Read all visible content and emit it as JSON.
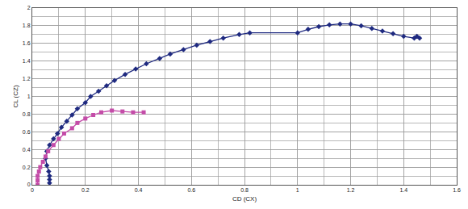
{
  "chart_data": {
    "type": "scatter",
    "x_label": "CD (CX)",
    "y_label": "CL (CZ)",
    "xlim": [
      0,
      1.6
    ],
    "xticks": [
      0,
      0.2,
      0.4,
      0.6,
      0.8,
      1,
      1.2,
      1.4,
      1.6
    ],
    "ylim": [
      0,
      2
    ],
    "yticks": [
      0,
      0.2,
      0.4,
      0.6,
      0.8,
      1,
      1.2,
      1.4,
      1.6,
      1.8,
      2
    ],
    "grid": true,
    "series": [
      {
        "color": "#1f2a80",
        "marker": "diamond",
        "line_style": "solid",
        "x": [
          0.065,
          0.065,
          0.065,
          0.062,
          0.055,
          0.05,
          0.055,
          0.065,
          0.08,
          0.095,
          0.11,
          0.13,
          0.15,
          0.17,
          0.2,
          0.22,
          0.25,
          0.28,
          0.31,
          0.35,
          0.39,
          0.43,
          0.48,
          0.52,
          0.57,
          0.62,
          0.67,
          0.72,
          0.78,
          0.82,
          1.0,
          1.04,
          1.08,
          1.12,
          1.16,
          1.2,
          1.24,
          1.28,
          1.32,
          1.36,
          1.4,
          1.44,
          1.46,
          1.45
        ],
        "values": [
          0.02,
          0.06,
          0.1,
          0.15,
          0.22,
          0.3,
          0.38,
          0.45,
          0.52,
          0.58,
          0.65,
          0.72,
          0.79,
          0.86,
          0.93,
          1.0,
          1.06,
          1.12,
          1.18,
          1.25,
          1.31,
          1.37,
          1.43,
          1.48,
          1.53,
          1.58,
          1.62,
          1.66,
          1.7,
          1.72,
          1.72,
          1.76,
          1.79,
          1.81,
          1.82,
          1.82,
          1.8,
          1.77,
          1.74,
          1.71,
          1.68,
          1.66,
          1.66,
          1.68
        ]
      },
      {
        "color": "#c44ca8",
        "marker": "square",
        "line_style": "solid",
        "x": [
          0.02,
          0.02,
          0.02,
          0.025,
          0.03,
          0.04,
          0.05,
          0.06,
          0.08,
          0.1,
          0.12,
          0.15,
          0.17,
          0.2,
          0.23,
          0.26,
          0.3,
          0.34,
          0.38,
          0.42
        ],
        "values": [
          0.0,
          0.05,
          0.1,
          0.15,
          0.2,
          0.26,
          0.32,
          0.38,
          0.45,
          0.52,
          0.58,
          0.64,
          0.7,
          0.75,
          0.79,
          0.82,
          0.84,
          0.83,
          0.82,
          0.82
        ]
      }
    ]
  }
}
